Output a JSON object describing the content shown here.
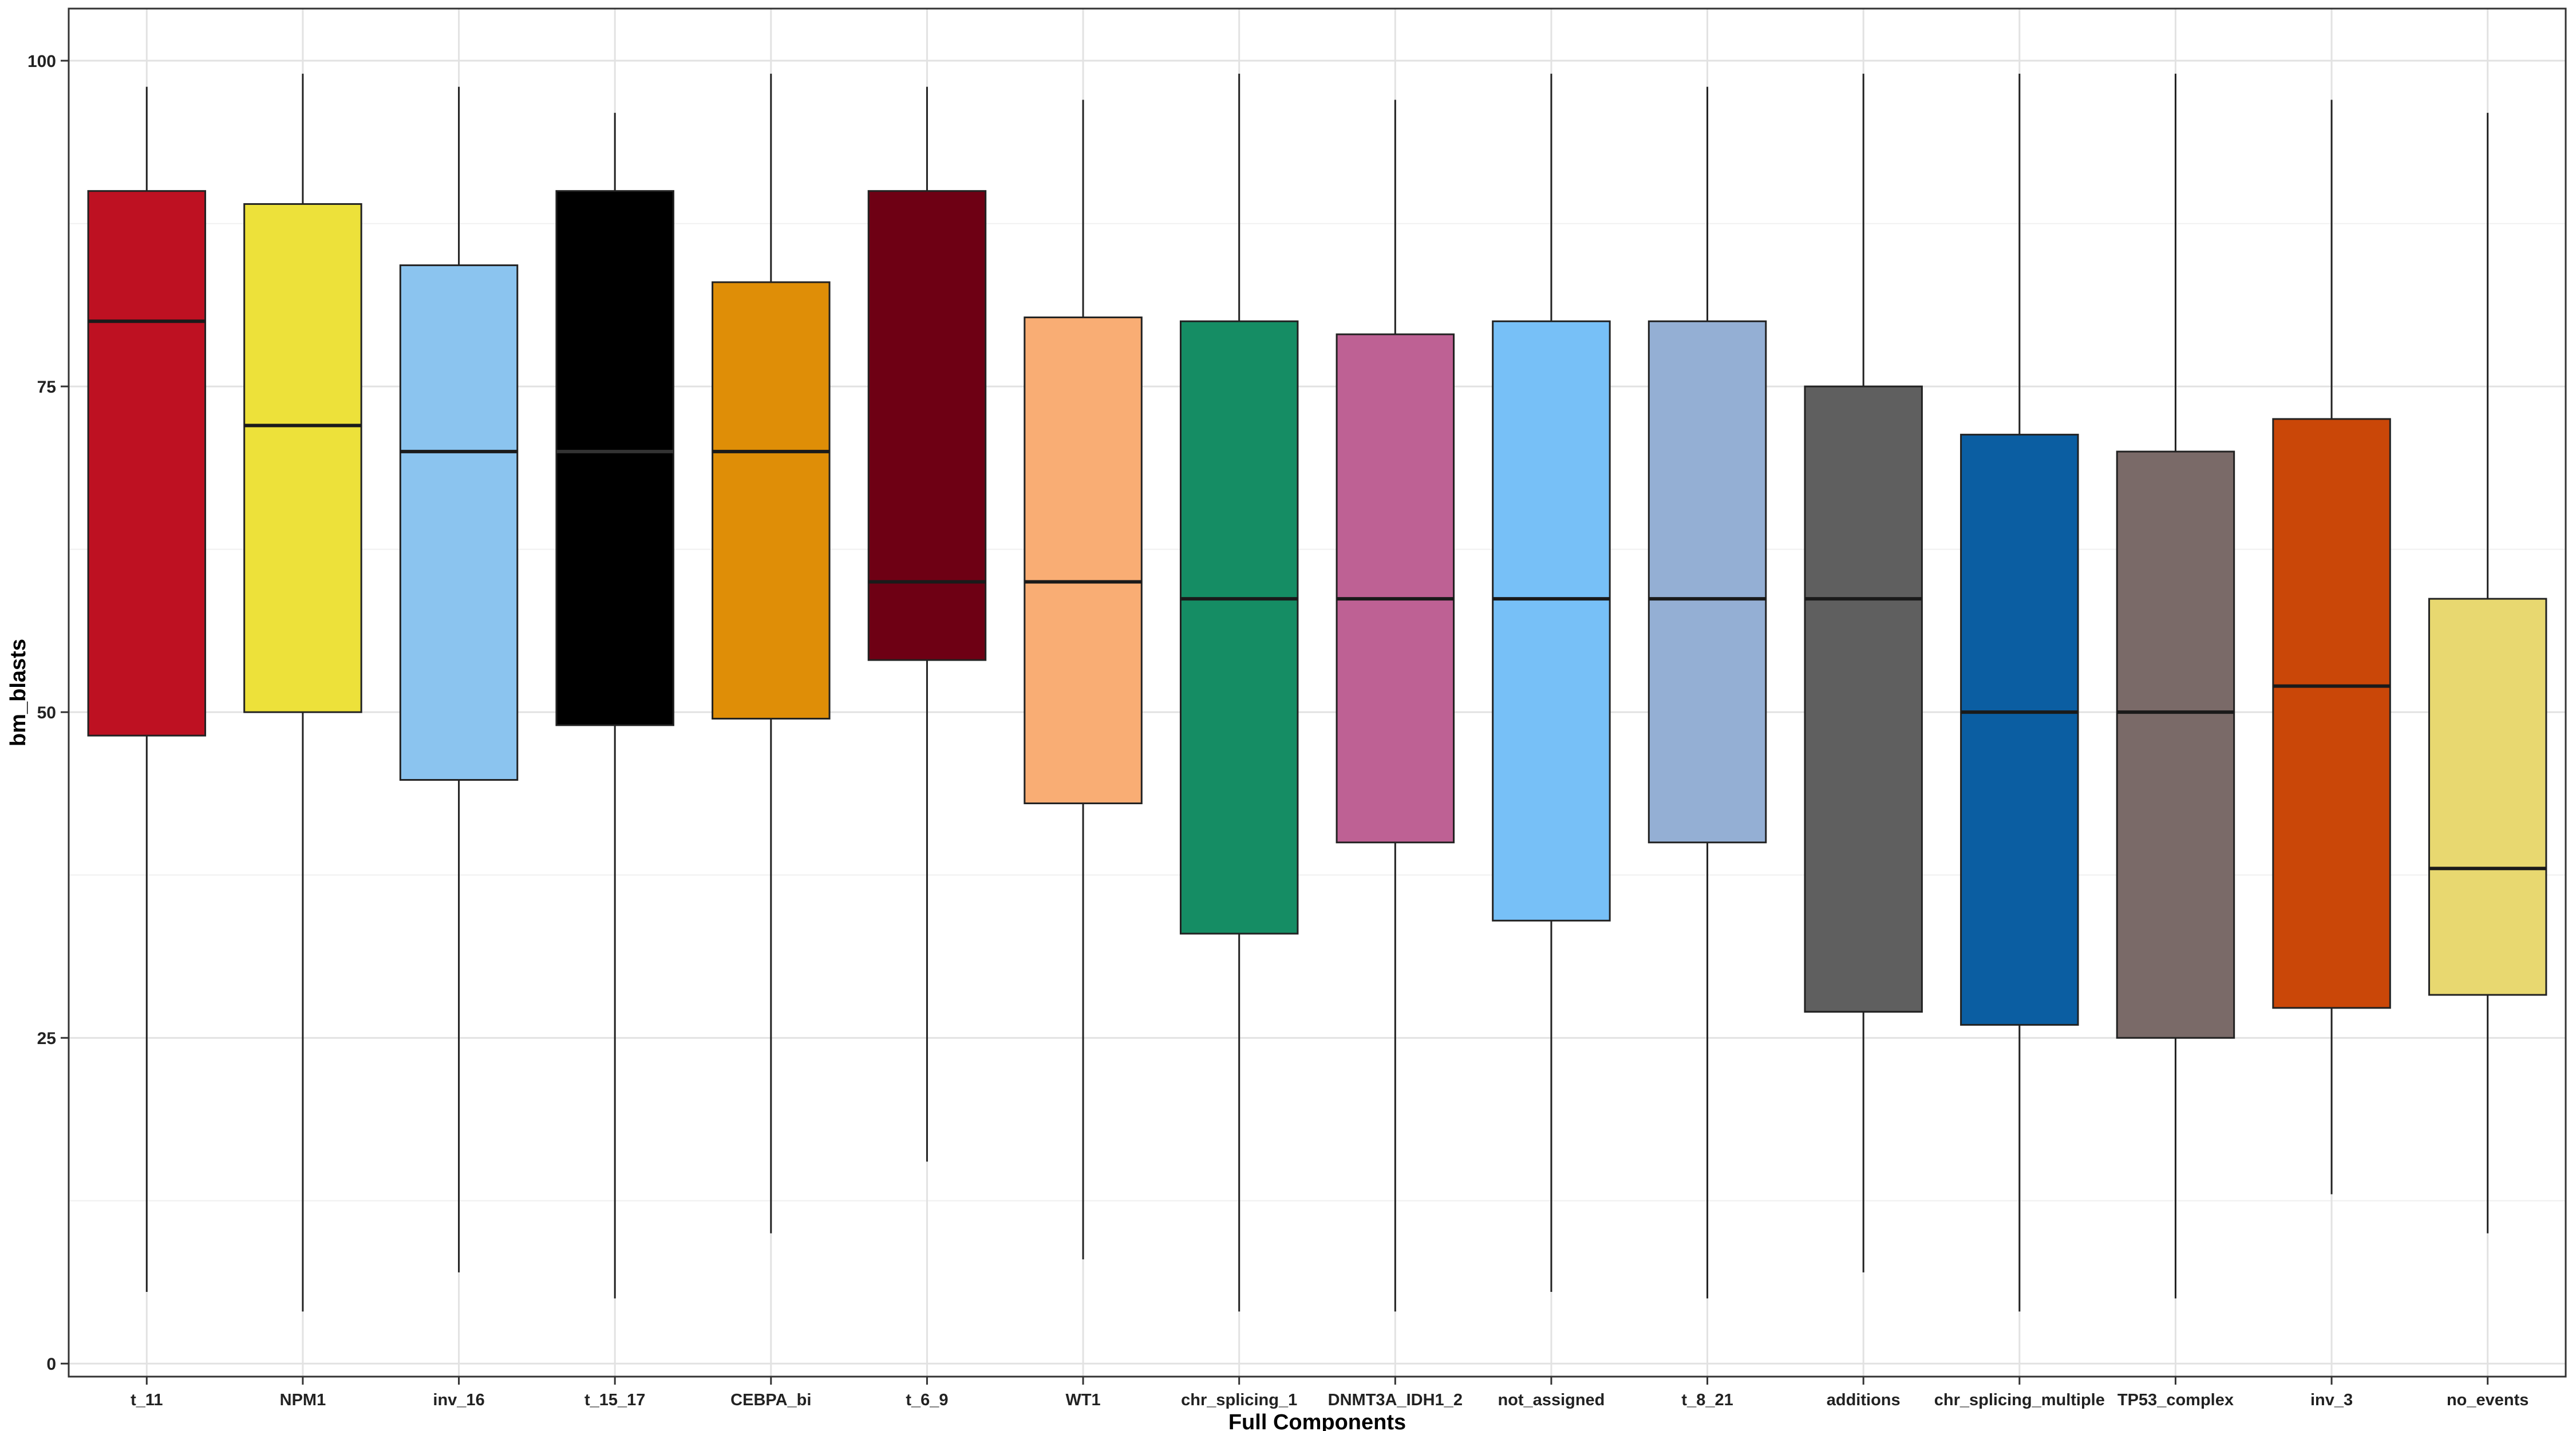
{
  "chart_data": {
    "type": "box",
    "xlabel": "Full Components",
    "ylabel": "bm_blasts",
    "ylim": [
      -1,
      104
    ],
    "yticks": [
      0,
      25,
      50,
      75,
      100
    ],
    "grid": true,
    "legend": "none",
    "categories": [
      "t_11",
      "NPM1",
      "inv_16",
      "t_15_17",
      "CEBPA_bi",
      "t_6_9",
      "WT1",
      "chr_splicing_1",
      "DNMT3A_IDH1_2",
      "not_assigned",
      "t_8_21",
      "additions",
      "chr_splicing_multiple",
      "TP53_complex",
      "inv_3",
      "no_events"
    ],
    "colors": [
      "#BE1122",
      "#EDE13A",
      "#8BC4EF",
      "#000000",
      "#DF8E07",
      "#6E0014",
      "#F9AD74",
      "#158D64",
      "#BE6194",
      "#77C0F7",
      "#94AFD4",
      "#5F5F5F",
      "#0B5EA2",
      "#7A6A68",
      "#CA4708",
      "#E8D870"
    ],
    "boxes": [
      {
        "min": 5.5,
        "q1": 48.2,
        "median": 80,
        "q3": 90,
        "max": 98
      },
      {
        "min": 4,
        "q1": 50,
        "median": 72,
        "q3": 89,
        "max": 99
      },
      {
        "min": 7,
        "q1": 44.8,
        "median": 70,
        "q3": 84.3,
        "max": 98
      },
      {
        "min": 5,
        "q1": 49,
        "median": 70,
        "q3": 90,
        "max": 96
      },
      {
        "min": 10,
        "q1": 49.5,
        "median": 70,
        "q3": 83,
        "max": 99
      },
      {
        "min": 15.5,
        "q1": 54,
        "median": 60,
        "q3": 90,
        "max": 98
      },
      {
        "min": 8,
        "q1": 43,
        "median": 60,
        "q3": 80.3,
        "max": 97
      },
      {
        "min": 4,
        "q1": 33,
        "median": 58.7,
        "q3": 80,
        "max": 99
      },
      {
        "min": 4,
        "q1": 40,
        "median": 58.7,
        "q3": 79,
        "max": 97
      },
      {
        "min": 5.5,
        "q1": 34,
        "median": 58.7,
        "q3": 80,
        "max": 99
      },
      {
        "min": 5,
        "q1": 40,
        "median": 58.7,
        "q3": 80,
        "max": 98
      },
      {
        "min": 7,
        "q1": 27,
        "median": 58.7,
        "q3": 75,
        "max": 99
      },
      {
        "min": 4,
        "q1": 26,
        "median": 50,
        "q3": 71.3,
        "max": 99
      },
      {
        "min": 5,
        "q1": 25,
        "median": 50,
        "q3": 70,
        "max": 99
      },
      {
        "min": 13,
        "q1": 27.3,
        "median": 52,
        "q3": 72.5,
        "max": 97
      },
      {
        "min": 10,
        "q1": 28.3,
        "median": 38,
        "q3": 58.7,
        "max": 96
      }
    ]
  }
}
